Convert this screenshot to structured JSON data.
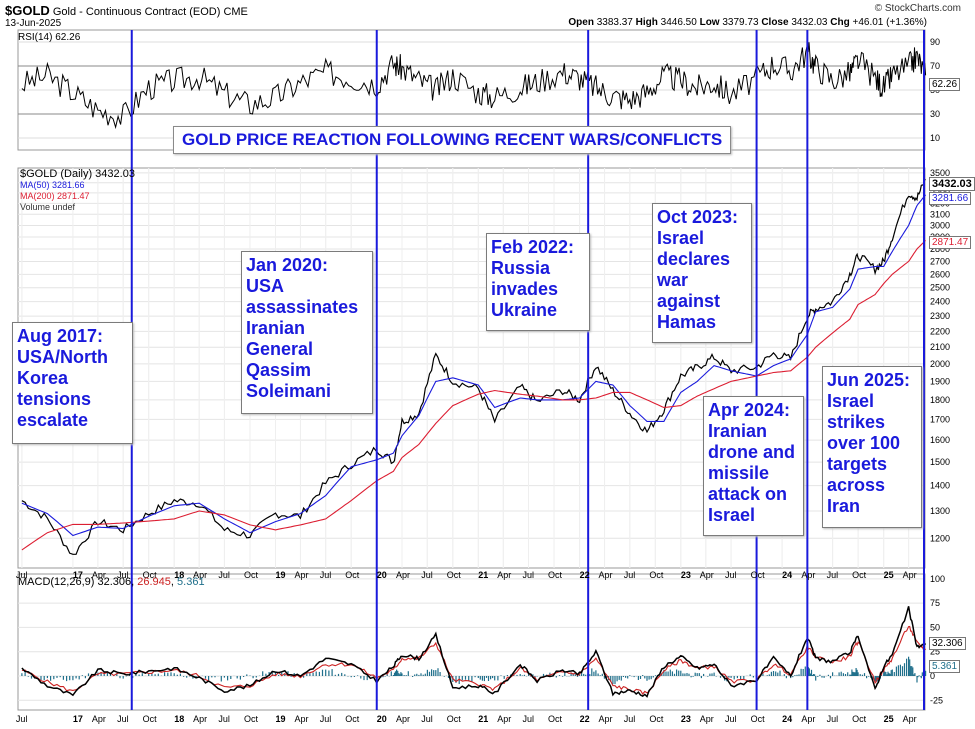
{
  "header": {
    "symbol": "$GOLD",
    "name": "Gold - Continuous Contract (EOD)",
    "exchange": "CME",
    "date": "13-Jun-2025",
    "open_label": "Open",
    "open": "3383.37",
    "high_label": "High",
    "high": "3446.50",
    "low_label": "Low",
    "low": "3379.73",
    "close_label": "Close",
    "close": "3432.03",
    "chg_label": "Chg",
    "chg": "+46.01 (+1.36%)",
    "watermark": "© StockCharts.com"
  },
  "colors": {
    "price": "#000000",
    "ma50": "#1a1adc",
    "ma200": "#dc1e32",
    "vline": "#1a1adc",
    "annotation_text": "#1a1adc",
    "macd_hist": "#1f6f8b",
    "macd_signal": "#cc2222"
  },
  "rsi_panel": {
    "legend": "RSI(14) 62.26",
    "value_tag": "62.26",
    "levels": [
      "90",
      "70",
      "50",
      "30",
      "10"
    ]
  },
  "price_panel": {
    "legend_main": "$GOLD (Daily) 3432.03",
    "legend_ma50": "MA(50) 3281.66",
    "legend_ma200": "MA(200) 2871.47",
    "legend_vol": "Volume undef",
    "tag_close": "3432.03",
    "tag_ma50": "3281.66",
    "tag_ma200": "2871.47"
  },
  "macd_panel": {
    "legend_prefix": "MACD(12,26,9)",
    "legend_macd": "32.306",
    "legend_signal": "26.945",
    "legend_hist": "5.361",
    "tag_macd": "32.306",
    "tag_hist": "5.361",
    "levels": [
      "100",
      "75",
      "50",
      "25",
      "0",
      "-25"
    ]
  },
  "title_banner": "GOLD PRICE REACTION FOLLOWING RECENT WARS/CONFLICTS",
  "annotations": [
    {
      "lines": [
        "Aug 2017:",
        "USA/North",
        "Korea",
        "tensions",
        "escalate"
      ]
    },
    {
      "lines": [
        "Jan 2020:",
        "USA",
        "assassinates",
        "Iranian",
        "General",
        "Qassim",
        "Soleimani"
      ]
    },
    {
      "lines": [
        "Feb 2022:",
        "Russia",
        "invades",
        "Ukraine"
      ]
    },
    {
      "lines": [
        "Oct 2023:",
        "Israel",
        "declares",
        "war",
        "against",
        "Hamas"
      ]
    },
    {
      "lines": [
        "Apr 2024:",
        "Iranian",
        "drone and",
        "missile",
        "attack on",
        "Israel"
      ]
    },
    {
      "lines": [
        "Jun 2025:",
        "Israel",
        "strikes",
        "over 100",
        "targets",
        "across",
        "Iran"
      ]
    }
  ],
  "chart_data": [
    {
      "type": "line",
      "title": "$GOLD (Daily)",
      "x_tick_labels": [
        "Jul",
        "17",
        "Apr",
        "Jul",
        "Oct",
        "18",
        "Apr",
        "Jul",
        "Oct",
        "19",
        "Apr",
        "Jul",
        "Oct",
        "20",
        "Apr",
        "Jul",
        "Oct",
        "21",
        "Apr",
        "Jul",
        "Oct",
        "22",
        "Apr",
        "Jul",
        "Oct",
        "23",
        "Apr",
        "Jul",
        "Oct",
        "24",
        "Apr",
        "Jul",
        "Oct",
        "25",
        "Apr"
      ],
      "y_tick_labels": [
        "3500",
        "3400",
        "3300",
        "3200",
        "3100",
        "3000",
        "2900",
        "2800",
        "2700",
        "2600",
        "2500",
        "2400",
        "2300",
        "2200",
        "2100",
        "2000",
        "1900",
        "1800",
        "1700",
        "1600",
        "1500",
        "1400",
        "1300",
        "1200"
      ],
      "y_scale": "log",
      "ylim": [
        1100,
        3550
      ],
      "x": [
        "2016-07",
        "2016-10",
        "2017-01",
        "2017-04",
        "2017-07",
        "2017-10",
        "2018-01",
        "2018-04",
        "2018-07",
        "2018-10",
        "2019-01",
        "2019-04",
        "2019-07",
        "2019-10",
        "2020-01",
        "2020-03",
        "2020-04",
        "2020-06",
        "2020-08",
        "2020-10",
        "2021-01",
        "2021-03",
        "2021-06",
        "2021-08",
        "2021-11",
        "2022-01",
        "2022-03",
        "2022-05",
        "2022-07",
        "2022-09",
        "2022-11",
        "2023-01",
        "2023-03",
        "2023-05",
        "2023-07",
        "2023-10",
        "2023-12",
        "2024-02",
        "2024-04",
        "2024-05",
        "2024-07",
        "2024-09",
        "2024-10",
        "2024-12",
        "2025-01",
        "2025-02",
        "2025-04",
        "2025-05",
        "2025-06"
      ],
      "series": [
        {
          "name": "$GOLD",
          "values": [
            1340,
            1270,
            1140,
            1260,
            1230,
            1290,
            1340,
            1330,
            1230,
            1210,
            1290,
            1280,
            1410,
            1490,
            1560,
            1500,
            1690,
            1730,
            2050,
            1900,
            1860,
            1690,
            1870,
            1790,
            1850,
            1800,
            1990,
            1850,
            1730,
            1640,
            1750,
            1930,
            1980,
            2040,
            1960,
            1980,
            2060,
            2030,
            2300,
            2350,
            2400,
            2600,
            2750,
            2640,
            2700,
            2900,
            3300,
            3250,
            3432.03
          ]
        },
        {
          "name": "MA(50)",
          "values": [
            1330,
            1290,
            1210,
            1240,
            1235,
            1280,
            1320,
            1330,
            1270,
            1220,
            1260,
            1290,
            1360,
            1480,
            1510,
            1540,
            1620,
            1720,
            1900,
            1920,
            1880,
            1760,
            1810,
            1800,
            1800,
            1810,
            1900,
            1880,
            1770,
            1690,
            1690,
            1840,
            1900,
            1990,
            1960,
            1930,
            1990,
            2030,
            2180,
            2330,
            2360,
            2490,
            2640,
            2660,
            2660,
            2780,
            3000,
            3180,
            3281.66
          ]
        },
        {
          "name": "MA(200)",
          "values": [
            1160,
            1220,
            1250,
            1250,
            1255,
            1262,
            1270,
            1300,
            1285,
            1248,
            1230,
            1248,
            1270,
            1340,
            1420,
            1460,
            1520,
            1580,
            1680,
            1770,
            1830,
            1850,
            1830,
            1820,
            1800,
            1800,
            1810,
            1840,
            1840,
            1800,
            1760,
            1770,
            1820,
            1860,
            1900,
            1930,
            1950,
            1960,
            2040,
            2100,
            2190,
            2280,
            2380,
            2450,
            2530,
            2600,
            2700,
            2800,
            2871.47
          ]
        }
      ]
    },
    {
      "type": "line",
      "title": "RSI(14)",
      "ylim": [
        0,
        100
      ],
      "y_tick_labels": [
        "90",
        "70",
        "50",
        "30",
        "10"
      ],
      "series": [
        {
          "name": "RSI(14)",
          "values": [
            55,
            62,
            48,
            33,
            28,
            52,
            58,
            61,
            47,
            38,
            44,
            56,
            65,
            60,
            55,
            72,
            68,
            58,
            50,
            62,
            48,
            44,
            52,
            57,
            65,
            60,
            52,
            45,
            42,
            48,
            62,
            58,
            52,
            56,
            46,
            60,
            72,
            66,
            82,
            70,
            58,
            64,
            75,
            60,
            52,
            62,
            70,
            78,
            62.26
          ]
        }
      ]
    },
    {
      "type": "line",
      "title": "MACD(12,26,9)",
      "ylim": [
        -35,
        105
      ],
      "y_tick_labels": [
        "100",
        "75",
        "50",
        "25",
        "0",
        "-25"
      ],
      "series": [
        {
          "name": "MACD",
          "values": [
            8,
            -10,
            -20,
            6,
            2,
            5,
            8,
            -2,
            -15,
            -10,
            6,
            0,
            18,
            12,
            -5,
            10,
            22,
            18,
            42,
            -12,
            -10,
            -18,
            12,
            -5,
            6,
            2,
            25,
            -18,
            -15,
            -20,
            10,
            20,
            8,
            12,
            -10,
            -4,
            18,
            0,
            40,
            18,
            15,
            24,
            42,
            -14,
            10,
            22,
            70,
            30,
            32.306
          ]
        },
        {
          "name": "Signal",
          "values": [
            6,
            -6,
            -16,
            2,
            2,
            4,
            6,
            0,
            -12,
            -10,
            2,
            0,
            12,
            12,
            -2,
            6,
            18,
            18,
            34,
            -4,
            -8,
            -14,
            8,
            -4,
            4,
            2,
            18,
            -10,
            -14,
            -18,
            6,
            16,
            8,
            10,
            -6,
            -4,
            12,
            2,
            30,
            20,
            14,
            20,
            36,
            -6,
            6,
            18,
            52,
            34,
            26.945
          ]
        }
      ],
      "histogram": {
        "name": "Histogram",
        "values": [
          2,
          -4,
          -4,
          4,
          0,
          1,
          2,
          -2,
          -3,
          0,
          4,
          0,
          6,
          0,
          -3,
          4,
          4,
          0,
          8,
          -8,
          -2,
          -4,
          4,
          -1,
          2,
          0,
          7,
          -8,
          -1,
          -2,
          4,
          4,
          0,
          2,
          -4,
          0,
          6,
          -2,
          10,
          -2,
          1,
          4,
          6,
          -8,
          4,
          4,
          18,
          -4,
          5.361
        ]
      }
    }
  ]
}
